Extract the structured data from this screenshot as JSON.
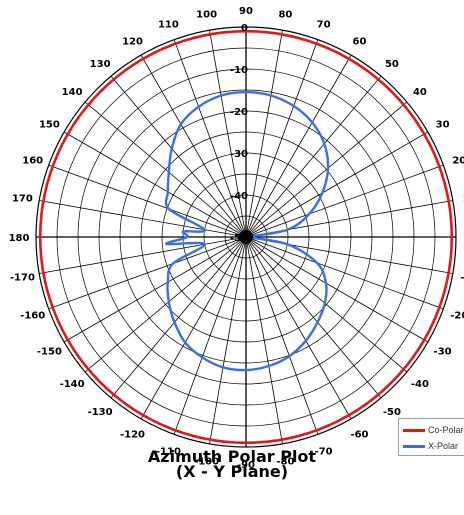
{
  "chart_data": {
    "type": "polar",
    "title": "Azimuth Polar Plot",
    "subtitle": "(X - Y Plane)",
    "angle_labels": [
      "0",
      "10",
      "20",
      "30",
      "40",
      "50",
      "60",
      "70",
      "80",
      "90",
      "100",
      "110",
      "120",
      "130",
      "140",
      "150",
      "160",
      "170",
      "180",
      "-170",
      "-160",
      "-150",
      "-140",
      "-130",
      "-120",
      "-110",
      "-100",
      "-90",
      "-80",
      "-70",
      "-60",
      "-50",
      "-40",
      "-30",
      "-20",
      "-10"
    ],
    "radial_labels": [
      "0",
      "-10",
      "-20",
      "-30",
      "-40",
      "-50"
    ],
    "r_range_db": [
      -50,
      0
    ],
    "series": [
      {
        "name": "Co-Polar",
        "color": "#e01818",
        "angles_deg": [
          0,
          30,
          60,
          90,
          120,
          150,
          180,
          210,
          240,
          270,
          300,
          330
        ],
        "values_db": [
          -1,
          -1,
          -1,
          -1,
          -1,
          -1,
          -1,
          -1,
          -1,
          -1,
          -1,
          -1
        ]
      },
      {
        "name": "X-Polar",
        "color": "#3a6fe8",
        "angles_deg": [
          0,
          10,
          20,
          30,
          40,
          50,
          60,
          70,
          80,
          90,
          100,
          110,
          120,
          130,
          140,
          150,
          160,
          170,
          175,
          180,
          185,
          190,
          200,
          210,
          220,
          230,
          240,
          250,
          260,
          270,
          280,
          290,
          300,
          310,
          320,
          330,
          340,
          350,
          360
        ],
        "values_db": [
          -50,
          -40,
          -34,
          -29,
          -24.5,
          -21,
          -18.5,
          -16.8,
          -15.8,
          -15.5,
          -15.8,
          -17,
          -19,
          -22.5,
          -26,
          -28.5,
          -30.5,
          -40,
          -35,
          -36,
          -31,
          -40,
          -31.5,
          -28.5,
          -26,
          -23.5,
          -21,
          -19.5,
          -18.5,
          -18.3,
          -18.8,
          -19.8,
          -21.5,
          -23.5,
          -25.5,
          -28,
          -32,
          -40,
          -50
        ]
      }
    ],
    "legend_position": "bottom-right",
    "grid": true
  }
}
